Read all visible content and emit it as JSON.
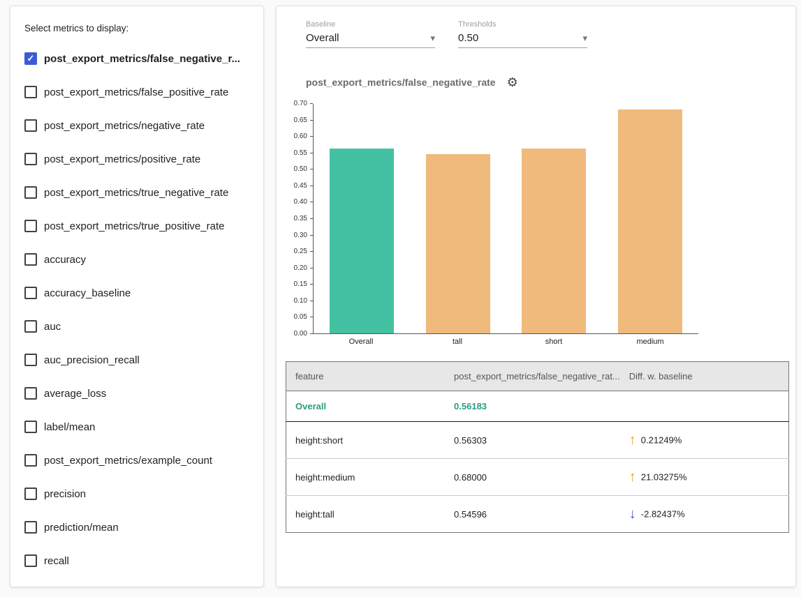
{
  "colors": {
    "teal_bar": "#44c1a3",
    "orange_bar": "#f0ba7d",
    "checkbox_checked": "#3b5bd6",
    "teal_text": "#2c9c81",
    "arrow_up_orange": "#f59b23",
    "arrow_down_blue": "#3f51d5"
  },
  "icons": {
    "gear": "⚙",
    "dropdown_arrow": "▾",
    "check": "✓",
    "arrow_up": "↑",
    "arrow_down": "↓"
  },
  "sidebar": {
    "title": "Select metrics to display:",
    "metrics": [
      {
        "label": "post_export_metrics/false_negative_r...",
        "checked": true
      },
      {
        "label": "post_export_metrics/false_positive_rate",
        "checked": false
      },
      {
        "label": "post_export_metrics/negative_rate",
        "checked": false
      },
      {
        "label": "post_export_metrics/positive_rate",
        "checked": false
      },
      {
        "label": "post_export_metrics/true_negative_rate",
        "checked": false
      },
      {
        "label": "post_export_metrics/true_positive_rate",
        "checked": false
      },
      {
        "label": "accuracy",
        "checked": false
      },
      {
        "label": "accuracy_baseline",
        "checked": false
      },
      {
        "label": "auc",
        "checked": false
      },
      {
        "label": "auc_precision_recall",
        "checked": false
      },
      {
        "label": "average_loss",
        "checked": false
      },
      {
        "label": "label/mean",
        "checked": false
      },
      {
        "label": "post_export_metrics/example_count",
        "checked": false
      },
      {
        "label": "precision",
        "checked": false
      },
      {
        "label": "prediction/mean",
        "checked": false
      },
      {
        "label": "recall",
        "checked": false
      }
    ]
  },
  "controls": {
    "baseline": {
      "label": "Baseline",
      "value": "Overall"
    },
    "thresholds": {
      "label": "Thresholds",
      "value": "0.50"
    }
  },
  "chart": {
    "title": "post_export_metrics/false_negative_rate"
  },
  "chart_data": {
    "type": "bar",
    "categories": [
      "Overall",
      "tall",
      "short",
      "medium"
    ],
    "values": [
      0.56183,
      0.54596,
      0.56303,
      0.68
    ],
    "bar_colors": [
      "#44c1a3",
      "#f0ba7d",
      "#f0ba7d",
      "#f0ba7d"
    ],
    "title": "post_export_metrics/false_negative_rate",
    "xlabel": "",
    "ylabel": "",
    "ylim": [
      0,
      0.7
    ],
    "ytick_step": 0.05,
    "grid": false,
    "legend": "none"
  },
  "table": {
    "headers": [
      "feature",
      "post_export_metrics/false_negative_rat...",
      "Diff. w. baseline"
    ],
    "rows": [
      {
        "feature": "Overall",
        "value": "0.56183",
        "diff": "",
        "direction": "",
        "baseline": true
      },
      {
        "feature": "height:short",
        "value": "0.56303",
        "diff": "0.21249%",
        "direction": "up",
        "baseline": false
      },
      {
        "feature": "height:medium",
        "value": "0.68000",
        "diff": "21.03275%",
        "direction": "up",
        "baseline": false
      },
      {
        "feature": "height:tall",
        "value": "0.54596",
        "diff": "-2.82437%",
        "direction": "down",
        "baseline": false
      }
    ]
  }
}
